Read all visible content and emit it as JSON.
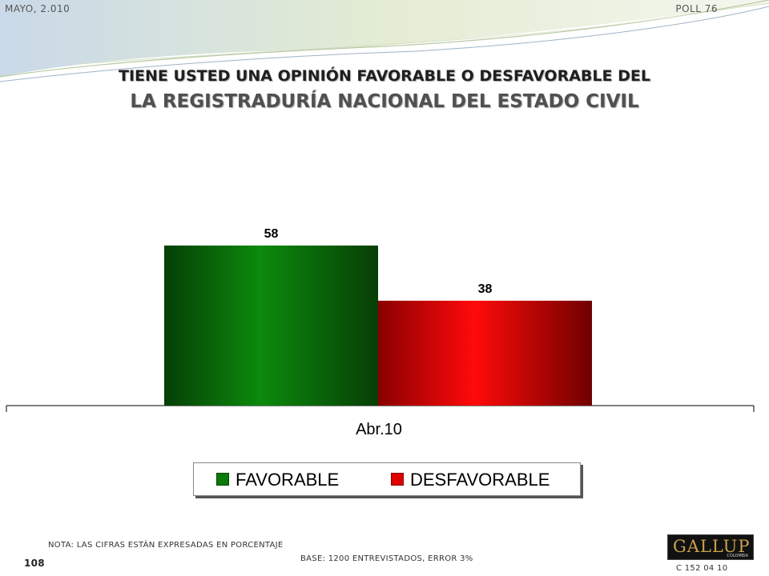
{
  "header": {
    "date": "MAYO, 2.010",
    "poll": "POLL 76",
    "title_line1": "TIENE USTED UNA OPINIÓN FAVORABLE O DESFAVORABLE DEL",
    "title_line2": "LA REGISTRADURÍA NACIONAL DEL ESTADO CIVIL"
  },
  "chart_data": {
    "type": "bar",
    "categories": [
      "Abr.10"
    ],
    "series": [
      {
        "name": "FAVORABLE",
        "values": [
          58
        ],
        "color": "#0a7a0a"
      },
      {
        "name": "DESFAVORABLE",
        "values": [
          38
        ],
        "color": "#ff0000"
      }
    ],
    "title": "TIENE USTED UNA OPINIÓN FAVORABLE O DESFAVORABLE DEL LA REGISTRADURÍA NACIONAL DEL ESTADO CIVIL",
    "xlabel": "",
    "ylabel": "",
    "ylim": [
      0,
      100
    ],
    "grid": false,
    "legend": "bottom"
  },
  "legend": {
    "favorable": "FAVORABLE",
    "desfavorable": "DESFAVORABLE"
  },
  "footer": {
    "note": "NOTA: LAS CIFRAS ESTÁN EXPRESADAS EN PORCENTAJE",
    "base": "BASE: 1200 ENTREVISTADOS, ERROR 3%",
    "page_number": "108",
    "logo": "GALLUP",
    "logo_sub": "COLOMBIA",
    "code": "C 152 04 10"
  },
  "colors": {
    "favorable": "#0a7a0a",
    "desfavorable": "#ff0000",
    "title_dark": "#1f1f1f",
    "title_gray": "#505050"
  }
}
